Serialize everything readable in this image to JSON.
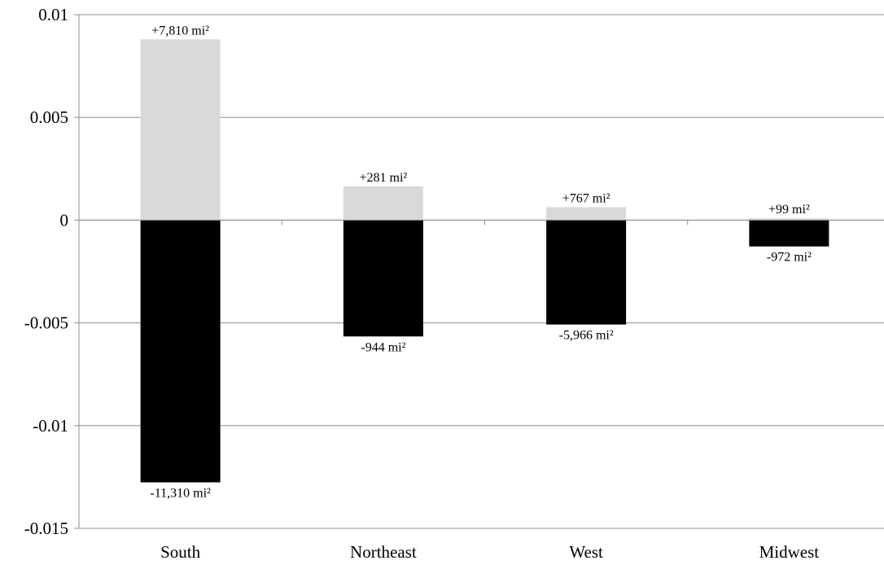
{
  "chart_data": {
    "type": "bar",
    "stacked": true,
    "categories": [
      "South",
      "Northeast",
      "West",
      "Midwest"
    ],
    "series": [
      {
        "color": "#d9d9d9",
        "values": [
          0.0088,
          0.00165,
          0.00063,
          9e-05
        ],
        "labels": [
          "+7,810 mi²",
          "+281 mi²",
          "+767 mi²",
          "+99 mi²"
        ]
      },
      {
        "color": "#000000",
        "values": [
          -0.01276,
          -0.00566,
          -0.00508,
          -0.00128
        ],
        "labels": [
          "-11,310 mi²",
          "-944 mi²",
          "-5,966 mi²",
          "-972 mi²"
        ]
      }
    ],
    "ylim": [
      -0.015,
      0.01
    ],
    "yticks": [
      0.01,
      0.005,
      0,
      -0.005,
      -0.01,
      -0.015
    ],
    "ytick_labels": [
      "0.01",
      "0.005",
      "0",
      "-0.005",
      "-0.01",
      "-0.015"
    ],
    "grid": true,
    "legend": "none",
    "title": "",
    "xlabel": "",
    "ylabel": ""
  }
}
